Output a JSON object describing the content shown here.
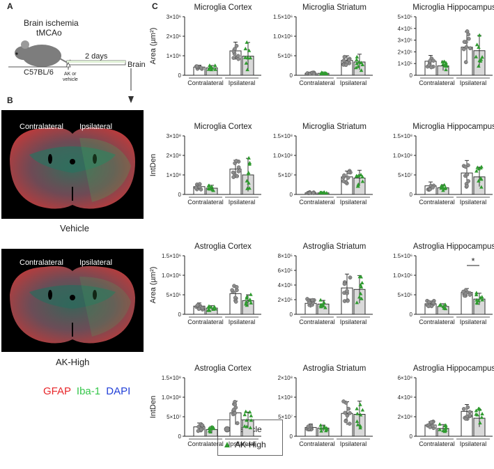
{
  "panels": {
    "a": "A",
    "b": "B",
    "c": "C"
  },
  "schematic": {
    "condition_line1": "Brain ischemia",
    "condition_line2": "tMCAo",
    "mouse_strain": "C57BL/6",
    "duration": "2 days",
    "treatment_line1": "AK or",
    "treatment_line2": "vehicle",
    "endpoint": "Brain"
  },
  "images": [
    {
      "left_label": "Contralateral",
      "right_label": "Ipsilateral",
      "caption": "Vehicle"
    },
    {
      "left_label": "Contralateral",
      "right_label": "Ipsilateral",
      "caption": "AK-High"
    }
  ],
  "stains": [
    {
      "name": "GFAP",
      "color": "#e8262a"
    },
    {
      "name": "Iba-1",
      "color": "#35c64a"
    },
    {
      "name": "DAPI",
      "color": "#2240d8"
    }
  ],
  "legend": {
    "items": [
      {
        "label": "Vehicle",
        "marker": "circle",
        "color": "#8c8c8c"
      },
      {
        "label": "AK-High",
        "marker": "triangle",
        "color": "#2f9a2f"
      }
    ]
  },
  "colors": {
    "vehicle_bar": "#ffffff",
    "ak_bar": "#d9d9d9",
    "vehicle_point": "#8c8c8c",
    "ak_point": "#2f9a2f"
  },
  "chart_data": [
    {
      "type": "bar",
      "title": "Microglia Cortex",
      "ylabel": "Area (µm²)",
      "categories": [
        "Contralateral",
        "Ipsilateral"
      ],
      "ylim": [
        0,
        3000000
      ],
      "ticks": [
        "0",
        "1×10⁶",
        "2×10⁶",
        "3×10⁶"
      ],
      "series": [
        {
          "name": "Vehicle",
          "values": [
            420000,
            1250000
          ],
          "error": [
            100000,
            450000
          ]
        },
        {
          "name": "AK-High",
          "values": [
            380000,
            980000
          ],
          "error": [
            120000,
            700000
          ]
        }
      ]
    },
    {
      "type": "bar",
      "title": "Microglia Striatum",
      "ylabel": "",
      "categories": [
        "Contralateral",
        "Ipsilateral"
      ],
      "ylim": [
        0,
        1500000
      ],
      "ticks": [
        "0",
        "5×10⁵",
        "1.0×10⁶",
        "1.5×10⁶"
      ],
      "series": [
        {
          "name": "Vehicle",
          "values": [
            50000,
            380000
          ],
          "error": [
            20000,
            120000
          ]
        },
        {
          "name": "AK-High",
          "values": [
            50000,
            340000
          ],
          "error": [
            20000,
            200000
          ]
        }
      ]
    },
    {
      "type": "bar",
      "title": "Microglia Hippocampus",
      "ylabel": "",
      "categories": [
        "Contralateral",
        "Ipsilateral"
      ],
      "ylim": [
        0,
        500000
      ],
      "ticks": [
        "0",
        "1×10⁵",
        "2×10⁵",
        "3×10⁵",
        "4×10⁵",
        "5×10⁵"
      ],
      "series": [
        {
          "name": "Vehicle",
          "values": [
            120000,
            240000
          ],
          "error": [
            50000,
            130000
          ]
        },
        {
          "name": "AK-High",
          "values": [
            80000,
            210000
          ],
          "error": [
            40000,
            130000
          ]
        }
      ]
    },
    {
      "type": "bar",
      "title": "Microglia Cortex",
      "ylabel": "IntDen",
      "categories": [
        "Contralateral",
        "Ipsilateral"
      ],
      "ylim": [
        0,
        300000000
      ],
      "ticks": [
        "0",
        "1×10⁸",
        "2×10⁸",
        "3×10⁸"
      ],
      "series": [
        {
          "name": "Vehicle",
          "values": [
            40000000,
            130000000
          ],
          "error": [
            15000000,
            45000000
          ]
        },
        {
          "name": "AK-High",
          "values": [
            32000000,
            100000000
          ],
          "error": [
            15000000,
            85000000
          ]
        }
      ]
    },
    {
      "type": "bar",
      "title": "Microglia Striatum",
      "ylabel": "",
      "categories": [
        "Contralateral",
        "Ipsilateral"
      ],
      "ylim": [
        0,
        150000000
      ],
      "ticks": [
        "0",
        "5×10⁷",
        "1.0×10⁸",
        "1.5×10⁸"
      ],
      "series": [
        {
          "name": "Vehicle",
          "values": [
            4000000,
            45000000
          ],
          "error": [
            2000000,
            15000000
          ]
        },
        {
          "name": "AK-High",
          "values": [
            4000000,
            42000000
          ],
          "error": [
            2000000,
            20000000
          ]
        }
      ]
    },
    {
      "type": "bar",
      "title": "Microglia Hippocampus",
      "ylabel": "",
      "categories": [
        "Contralateral",
        "Ipsilateral"
      ],
      "ylim": [
        0,
        150000000
      ],
      "ticks": [
        "0",
        "5×10⁷",
        "1.0×10⁸",
        "1.5×10⁸"
      ],
      "series": [
        {
          "name": "Vehicle",
          "values": [
            22000000,
            55000000
          ],
          "error": [
            10000000,
            32000000
          ]
        },
        {
          "name": "AK-High",
          "values": [
            17000000,
            45000000
          ],
          "error": [
            8000000,
            25000000
          ]
        }
      ]
    },
    {
      "type": "bar",
      "title": "Astroglia Cortex",
      "ylabel": "Area (µm²)",
      "categories": [
        "Contralateral",
        "Ipsilateral"
      ],
      "ylim": [
        0,
        1500000
      ],
      "ticks": [
        "0",
        "5×10⁵",
        "1.0×10⁶",
        "1.5×10⁶"
      ],
      "series": [
        {
          "name": "Vehicle",
          "values": [
            210000,
            530000
          ],
          "error": [
            80000,
            200000
          ]
        },
        {
          "name": "AK-High",
          "values": [
            160000,
            350000
          ],
          "error": [
            60000,
            150000
          ]
        }
      ]
    },
    {
      "type": "bar",
      "title": "Astroglia Striatum",
      "ylabel": "",
      "categories": [
        "Contralateral",
        "Ipsilateral"
      ],
      "ylim": [
        0,
        800000
      ],
      "ticks": [
        "0",
        "2×10⁵",
        "4×10⁵",
        "6×10⁵",
        "8×10⁵"
      ],
      "series": [
        {
          "name": "Vehicle",
          "values": [
            150000,
            360000
          ],
          "error": [
            60000,
            190000
          ]
        },
        {
          "name": "AK-High",
          "values": [
            140000,
            340000
          ],
          "error": [
            50000,
            190000
          ]
        }
      ]
    },
    {
      "type": "bar",
      "title": "Astroglia Hippocampus",
      "ylabel": "",
      "categories": [
        "Contralateral",
        "Ipsilateral"
      ],
      "ylim": [
        0,
        1500000
      ],
      "ticks": [
        "0",
        "5×10⁵",
        "1.0×10⁶",
        "1.5×10⁶"
      ],
      "series": [
        {
          "name": "Vehicle",
          "values": [
            270000,
            560000
          ],
          "error": [
            70000,
            100000
          ]
        },
        {
          "name": "AK-High",
          "values": [
            200000,
            390000
          ],
          "error": [
            70000,
            150000
          ]
        }
      ],
      "annotation": "*"
    },
    {
      "type": "bar",
      "title": "Astroglia Cortex",
      "ylabel": "IntDen",
      "categories": [
        "Contralateral",
        "Ipsilateral"
      ],
      "ylim": [
        0,
        150000000
      ],
      "ticks": [
        "0",
        "5×10⁷",
        "1.0×10⁸",
        "1.5×10⁸"
      ],
      "series": [
        {
          "name": "Vehicle",
          "values": [
            24000000,
            60000000
          ],
          "error": [
            10000000,
            30000000
          ]
        },
        {
          "name": "AK-High",
          "values": [
            17000000,
            42000000
          ],
          "error": [
            8000000,
            20000000
          ]
        }
      ]
    },
    {
      "type": "bar",
      "title": "Astroglia Striatum",
      "ylabel": "",
      "categories": [
        "Contralateral",
        "Ipsilateral"
      ],
      "ylim": [
        0,
        200000000
      ],
      "ticks": [
        "0",
        "5×10⁷",
        "1×10⁸",
        "2×10⁸"
      ],
      "series": [
        {
          "name": "Vehicle",
          "values": [
            30000000,
            78000000
          ],
          "error": [
            12000000,
            40000000
          ]
        },
        {
          "name": "AK-High",
          "values": [
            28000000,
            75000000
          ],
          "error": [
            10000000,
            45000000
          ]
        }
      ]
    },
    {
      "type": "bar",
      "title": "Astroglia Hippocampus",
      "ylabel": "",
      "categories": [
        "Contralateral",
        "Ipsilateral"
      ],
      "ylim": [
        0,
        600000000
      ],
      "ticks": [
        "0",
        "2×10⁸",
        "4×10⁸",
        "6×10⁸"
      ],
      "series": [
        {
          "name": "Vehicle",
          "values": [
            115000000,
            255000000
          ],
          "error": [
            35000000,
            70000000
          ]
        },
        {
          "name": "AK-High",
          "values": [
            80000000,
            185000000
          ],
          "error": [
            40000000,
            90000000
          ]
        }
      ]
    }
  ]
}
